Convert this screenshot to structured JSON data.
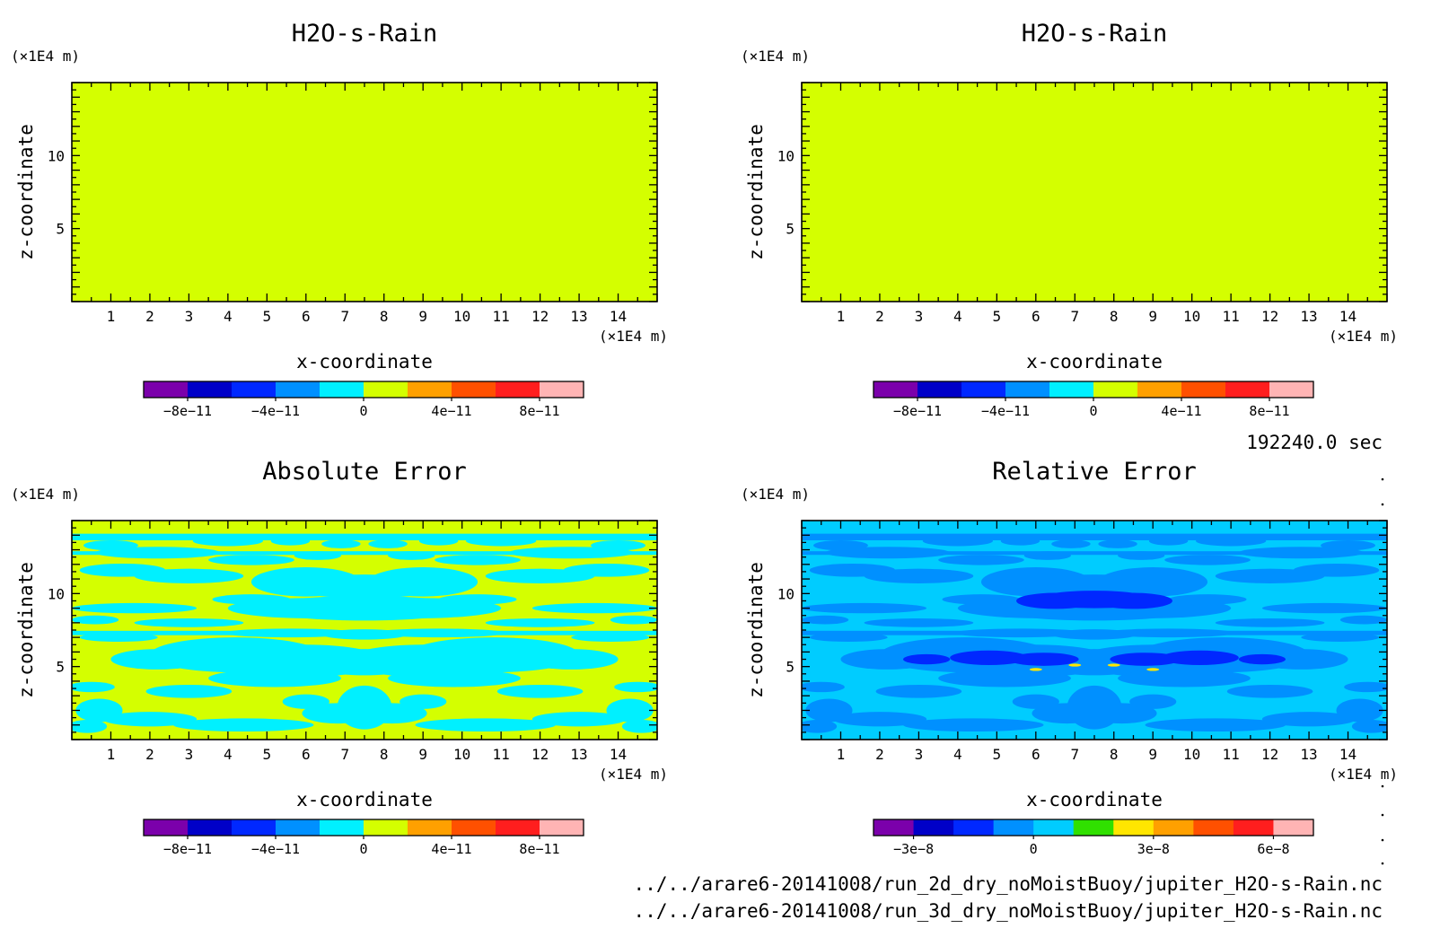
{
  "annotations": {
    "time": "192240.0 sec",
    "file1": "../../arare6-20141008/run_2d_dry_noMoistBuoy/jupiter_H2O-s-Rain.nc",
    "file2": "../../arare6-20141008/run_3d_dry_noMoistBuoy/jupiter_H2O-s-Rain.nc"
  },
  "chart_data": [
    {
      "type": "heatmap",
      "title": "H2O-s-Rain",
      "xlabel": "x-coordinate",
      "ylabel": "z-coordinate",
      "x_unit": "(×1E4 m)",
      "y_unit": "(×1E4 m)",
      "xlim": [
        0,
        15
      ],
      "ylim": [
        0,
        15
      ],
      "xticks": [
        1,
        2,
        3,
        4,
        5,
        6,
        7,
        8,
        9,
        10,
        11,
        12,
        13,
        14
      ],
      "yticks": [
        5,
        10
      ],
      "field": "uniform",
      "uniform_value": 0,
      "fill_color": "#d4ff00",
      "colorbar": {
        "colors": [
          "#7b00ab",
          "#0000c8",
          "#0028ff",
          "#0090ff",
          "#00f0ff",
          "#d4ff00",
          "#ffa000",
          "#ff5000",
          "#ff1e1e",
          "#ffb4b4"
        ],
        "labels": [
          "−8e−11",
          "−4e−11",
          "0",
          "4e−11",
          "8e−11"
        ],
        "label_positions": [
          1,
          3,
          5,
          7,
          9
        ]
      }
    },
    {
      "type": "heatmap",
      "title": "H2O-s-Rain",
      "xlabel": "x-coordinate",
      "ylabel": "z-coordinate",
      "x_unit": "(×1E4 m)",
      "y_unit": "(×1E4 m)",
      "xlim": [
        0,
        15
      ],
      "ylim": [
        0,
        15
      ],
      "xticks": [
        1,
        2,
        3,
        4,
        5,
        6,
        7,
        8,
        9,
        10,
        11,
        12,
        13,
        14
      ],
      "yticks": [
        5,
        10
      ],
      "field": "uniform",
      "uniform_value": 0,
      "fill_color": "#d4ff00",
      "colorbar": {
        "colors": [
          "#7b00ab",
          "#0000c8",
          "#0028ff",
          "#0090ff",
          "#00f0ff",
          "#d4ff00",
          "#ffa000",
          "#ff5000",
          "#ff1e1e",
          "#ffb4b4"
        ],
        "labels": [
          "−8e−11",
          "−4e−11",
          "0",
          "4e−11",
          "8e−11"
        ],
        "label_positions": [
          1,
          3,
          5,
          7,
          9
        ]
      }
    },
    {
      "type": "heatmap",
      "title": "Absolute Error",
      "xlabel": "x-coordinate",
      "ylabel": "z-coordinate",
      "x_unit": "(×1E4 m)",
      "y_unit": "(×1E4 m)",
      "xlim": [
        0,
        15
      ],
      "ylim": [
        0,
        15
      ],
      "xticks": [
        1,
        2,
        3,
        4,
        5,
        6,
        7,
        8,
        9,
        10,
        11,
        12,
        13,
        14
      ],
      "yticks": [
        5,
        10
      ],
      "field": "symmetric-pattern",
      "background_color": "#d4ff00",
      "region_colors": [
        "#00f0ff"
      ],
      "colorbar": {
        "colors": [
          "#7b00ab",
          "#0000c8",
          "#0028ff",
          "#0090ff",
          "#00f0ff",
          "#d4ff00",
          "#ffa000",
          "#ff5000",
          "#ff1e1e",
          "#ffb4b4"
        ],
        "labels": [
          "−8e−11",
          "−4e−11",
          "0",
          "4e−11",
          "8e−11"
        ],
        "label_positions": [
          1,
          3,
          5,
          7,
          9
        ]
      }
    },
    {
      "type": "heatmap",
      "title": "Relative Error",
      "xlabel": "x-coordinate",
      "ylabel": "z-coordinate",
      "x_unit": "(×1E4 m)",
      "y_unit": "(×1E4 m)",
      "xlim": [
        0,
        15
      ],
      "ylim": [
        0,
        15
      ],
      "xticks": [
        1,
        2,
        3,
        4,
        5,
        6,
        7,
        8,
        9,
        10,
        11,
        12,
        13,
        14
      ],
      "yticks": [
        5,
        10
      ],
      "field": "symmetric-pattern",
      "background_color": "#00ccff",
      "region_colors": [
        "#0090ff",
        "#0028ff",
        "#ffe600"
      ],
      "colorbar": {
        "colors": [
          "#7b00ab",
          "#0000c8",
          "#0028ff",
          "#0090ff",
          "#00ccff",
          "#30e000",
          "#ffe600",
          "#ffa000",
          "#ff5000",
          "#ff1e1e",
          "#ffb4b4"
        ],
        "labels": [
          "−3e−8",
          "0",
          "3e−8",
          "6e−8"
        ],
        "label_positions": [
          1,
          4,
          7,
          10
        ]
      }
    }
  ]
}
